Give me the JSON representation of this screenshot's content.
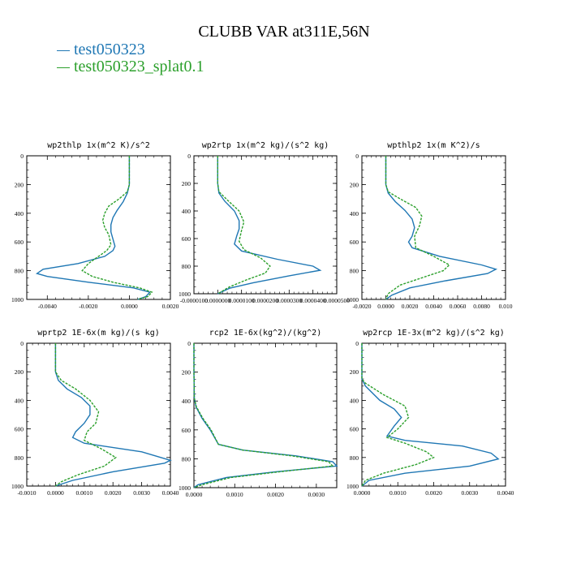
{
  "title": "CLUBB VAR at311E,56N",
  "legend": [
    {
      "label": "test050323",
      "color": "#1f77b4"
    },
    {
      "label": "test050323_splat0.1",
      "color": "#2ca02c"
    }
  ],
  "chart_data": [
    {
      "type": "line",
      "title": "wp2thlp  1x(m^2 K)/s^2",
      "xlim": [
        -0.005,
        0.002
      ],
      "ylim": [
        1000,
        0
      ],
      "xticks": [
        -0.004,
        -0.002,
        0.0,
        0.002
      ],
      "xtick_labels": [
        "-0.0040",
        "-0.0020",
        "0.0000",
        "0.0020"
      ],
      "yticks": [
        0,
        200,
        400,
        600,
        800,
        1000
      ],
      "series": [
        {
          "name": "test050323",
          "x": [
            0.0,
            0.0,
            0.0,
            -0.0001,
            -0.0003,
            -0.0006,
            -0.0008,
            -0.0009,
            -0.0009,
            -0.0008,
            -0.0007,
            -0.0008,
            -0.0012,
            -0.0025,
            -0.0042,
            -0.0045,
            -0.004,
            -0.002,
            0.0002,
            0.001,
            0.0008,
            0.0004
          ],
          "y": [
            0,
            100,
            200,
            260,
            320,
            380,
            430,
            480,
            530,
            580,
            630,
            660,
            700,
            750,
            790,
            820,
            840,
            880,
            920,
            950,
            980,
            1000
          ]
        },
        {
          "name": "test050323_splat0.1",
          "x": [
            0.0,
            0.0,
            0.0,
            -0.0001,
            -0.0005,
            -0.001,
            -0.0012,
            -0.0013,
            -0.0012,
            -0.001,
            -0.0009,
            -0.0011,
            -0.0015,
            -0.002,
            -0.0023,
            -0.0018,
            -0.0008,
            0.0005,
            0.0011,
            0.0009,
            0.0004
          ],
          "y": [
            0,
            100,
            200,
            250,
            300,
            350,
            400,
            450,
            500,
            550,
            620,
            660,
            700,
            750,
            800,
            840,
            880,
            920,
            950,
            980,
            1000
          ]
        }
      ]
    },
    {
      "type": "line",
      "title": "wp2rtp  1x(m^2 kg)/(s^2 kg)",
      "xlim": [
        -1e-05,
        5e-05
      ],
      "ylim": [
        1000,
        0
      ],
      "xticks": [
        -1e-05,
        0.0,
        1e-05,
        2e-05,
        3e-05,
        4e-05,
        5e-05
      ],
      "xtick_labels": [
        "-0.0000100",
        "0.0000000",
        "0.0000100",
        "0.0000200",
        "0.0000300",
        "0.0000400",
        "0.0000500"
      ],
      "yticks": [
        0,
        200,
        400,
        600,
        800,
        1000
      ],
      "series": [
        {
          "name": "test050323",
          "x": [
            0.0,
            0.0,
            0.0,
            5e-07,
            3e-06,
            7e-06,
            9e-06,
            9e-06,
            8e-06,
            7e-06,
            1e-05,
            2.5e-05,
            4e-05,
            4.3e-05,
            3e-05,
            1.5e-05,
            5e-06,
            0.0
          ],
          "y": [
            0,
            100,
            200,
            270,
            330,
            400,
            470,
            530,
            580,
            640,
            690,
            750,
            800,
            830,
            870,
            920,
            960,
            1000
          ]
        },
        {
          "name": "test050323_splat0.1",
          "x": [
            0.0,
            0.0,
            0.0,
            5e-07,
            4e-06,
            9e-06,
            1.1e-05,
            1e-05,
            9e-06,
            1.1e-05,
            1.8e-05,
            2.2e-05,
            2e-05,
            1.2e-05,
            5e-06,
            0.0
          ],
          "y": [
            0,
            100,
            200,
            260,
            320,
            400,
            480,
            540,
            620,
            680,
            740,
            800,
            850,
            900,
            950,
            1000
          ]
        }
      ]
    },
    {
      "type": "line",
      "title": "wpthlp2  1x(m K^2)/s",
      "xlim": [
        -0.002,
        0.01
      ],
      "ylim": [
        1000,
        0
      ],
      "xticks": [
        -0.002,
        0.0,
        0.002,
        0.004,
        0.006,
        0.008,
        0.01
      ],
      "xtick_labels": [
        "-0.0020",
        "0.0000",
        "0.0020",
        "0.0040",
        "0.0060",
        "0.0080",
        "0.010"
      ],
      "yticks": [
        0,
        200,
        400,
        600,
        800,
        1000
      ],
      "series": [
        {
          "name": "test050323",
          "x": [
            0.0,
            0.0,
            0.0,
            0.0002,
            0.0008,
            0.0016,
            0.0022,
            0.0024,
            0.0022,
            0.0019,
            0.0022,
            0.0045,
            0.008,
            0.0092,
            0.0085,
            0.005,
            0.002,
            0.0005,
            0.0
          ],
          "y": [
            0,
            100,
            200,
            260,
            320,
            380,
            440,
            500,
            560,
            600,
            640,
            700,
            760,
            790,
            820,
            870,
            920,
            970,
            1000
          ]
        },
        {
          "name": "test050323_splat0.1",
          "x": [
            0.0,
            0.0,
            0.0,
            0.0002,
            0.0012,
            0.0025,
            0.003,
            0.0028,
            0.0024,
            0.0025,
            0.004,
            0.0053,
            0.0048,
            0.003,
            0.0012,
            0.0002,
            0.0
          ],
          "y": [
            0,
            100,
            200,
            250,
            300,
            360,
            420,
            490,
            560,
            640,
            700,
            760,
            800,
            850,
            900,
            960,
            1000
          ]
        }
      ]
    },
    {
      "type": "line",
      "title": "wprtp2  1E-6x(m kg)/(s kg)",
      "xlim": [
        -0.001,
        0.004
      ],
      "ylim": [
        1000,
        0
      ],
      "xticks": [
        -0.001,
        0.0,
        0.001,
        0.002,
        0.003,
        0.004
      ],
      "xtick_labels": [
        "-0.0010",
        "0.0000",
        "0.0010",
        "0.0020",
        "0.0030",
        "0.0040"
      ],
      "yticks": [
        0,
        200,
        400,
        600,
        800,
        1000
      ],
      "series": [
        {
          "name": "test050323",
          "x": [
            0.0,
            0.0,
            0.0,
            0.0001,
            0.0004,
            0.0009,
            0.0012,
            0.0012,
            0.001,
            0.0007,
            0.0006,
            0.001,
            0.003,
            0.004,
            0.0038,
            0.002,
            0.0006,
            0.0
          ],
          "y": [
            0,
            100,
            200,
            260,
            320,
            380,
            440,
            500,
            560,
            620,
            660,
            700,
            760,
            820,
            840,
            900,
            960,
            1000
          ]
        },
        {
          "name": "test050323_splat0.1",
          "x": [
            0.0,
            0.0,
            0.0,
            0.0002,
            0.0007,
            0.0012,
            0.0015,
            0.0014,
            0.0011,
            0.001,
            0.0016,
            0.0021,
            0.0017,
            0.0008,
            0.0002,
            0.0
          ],
          "y": [
            0,
            100,
            200,
            260,
            320,
            400,
            480,
            560,
            620,
            680,
            740,
            800,
            860,
            920,
            970,
            1000
          ]
        }
      ]
    },
    {
      "type": "line",
      "title": "rcp2  1E-6x(kg^2)/(kg^2)",
      "xlim": [
        0.0,
        0.0035
      ],
      "ylim": [
        1000,
        0
      ],
      "xticks": [
        0.0,
        0.001,
        0.002,
        0.003
      ],
      "xtick_labels": [
        "0.0000",
        "0.0010",
        "0.0020",
        "0.0030"
      ],
      "yticks": [
        0,
        200,
        400,
        600,
        800,
        1000
      ],
      "series": [
        {
          "name": "test050323",
          "x": [
            0.0,
            0.0,
            1e-05,
            5e-05,
            0.0002,
            0.0004,
            0.0006,
            0.0012,
            0.0025,
            0.0034,
            0.0035,
            0.002,
            0.0008,
            0.0001,
            0.0
          ],
          "y": [
            0,
            200,
            380,
            440,
            520,
            600,
            700,
            740,
            780,
            820,
            850,
            890,
            930,
            980,
            1000
          ]
        },
        {
          "name": "test050323_splat0.1",
          "x": [
            0.0,
            0.0,
            1e-05,
            6e-05,
            0.00022,
            0.00042,
            0.0006,
            0.0012,
            0.0024,
            0.0033,
            0.0034,
            0.0021,
            0.0009,
            0.0002,
            0.0
          ],
          "y": [
            0,
            200,
            380,
            440,
            520,
            600,
            700,
            740,
            780,
            820,
            850,
            890,
            930,
            980,
            1000
          ]
        }
      ]
    },
    {
      "type": "line",
      "title": "wp2rcp  1E-3x(m^2 kg)/(s^2 kg)",
      "xlim": [
        0.0,
        0.004
      ],
      "ylim": [
        1000,
        0
      ],
      "xticks": [
        0.0,
        0.001,
        0.002,
        0.003,
        0.004
      ],
      "xtick_labels": [
        "0.0000",
        "0.0010",
        "0.0020",
        "0.0030",
        "0.0040"
      ],
      "yticks": [
        0,
        200,
        400,
        600,
        800,
        1000
      ],
      "series": [
        {
          "name": "test050323",
          "x": [
            0.0,
            0.0,
            0.0,
            0.0001,
            0.0005,
            0.0009,
            0.0011,
            0.0009,
            0.0007,
            0.0012,
            0.0028,
            0.0036,
            0.0038,
            0.003,
            0.0012,
            0.0002,
            0.0
          ],
          "y": [
            0,
            150,
            250,
            300,
            400,
            460,
            520,
            580,
            650,
            680,
            720,
            770,
            810,
            860,
            910,
            960,
            1000
          ]
        },
        {
          "name": "test050323_splat0.1",
          "x": [
            0.0,
            0.0,
            0.0,
            0.0001,
            0.0006,
            0.0012,
            0.0013,
            0.001,
            0.0007,
            0.0012,
            0.0018,
            0.002,
            0.0015,
            0.0006,
            0.0001,
            0.0
          ],
          "y": [
            0,
            150,
            250,
            280,
            360,
            440,
            520,
            600,
            660,
            700,
            760,
            800,
            850,
            910,
            960,
            1000
          ]
        }
      ]
    }
  ]
}
